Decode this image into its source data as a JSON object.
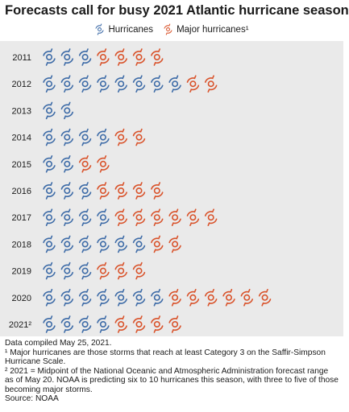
{
  "chart_data": {
    "type": "pictogram",
    "title": "Forecasts call for busy 2021 Atlantic hurricane season",
    "legend": [
      {
        "name": "Hurricanes",
        "color": "#3d6ba7"
      },
      {
        "name": "Major hurricanes¹",
        "color": "#d9532b"
      }
    ],
    "categories": [
      "2011",
      "2012",
      "2013",
      "2014",
      "2015",
      "2016",
      "2017",
      "2018",
      "2019",
      "2020",
      "2021²"
    ],
    "series": [
      {
        "name": "Hurricanes",
        "values": [
          3,
          8,
          2,
          4,
          2,
          3,
          4,
          6,
          3,
          7,
          4
        ]
      },
      {
        "name": "Major hurricanes¹",
        "values": [
          4,
          2,
          0,
          2,
          2,
          4,
          6,
          2,
          3,
          6,
          4
        ]
      }
    ]
  },
  "footnotes": [
    "Data compiled May 25, 2021.",
    "¹ Major hurricanes are those storms that reach at least Category 3 on the Saffir-Simpson Hurricane Scale.",
    "² 2021 = Midpoint of the National Oceanic and Atmospheric Administration forecast range as of May 20. NOAA is predicting six to 10 hurricanes this season, with three to five of those becoming major storms.",
    "Source: NOAA"
  ]
}
